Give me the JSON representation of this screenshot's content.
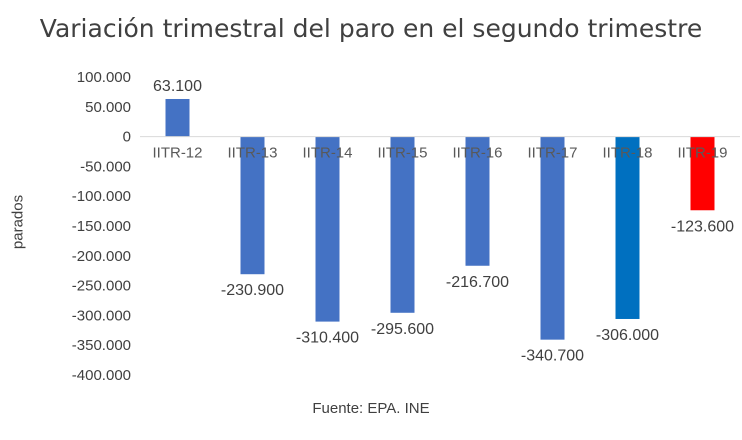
{
  "chart_data": {
    "type": "bar",
    "title": "Variación trimestral del paro en el segundo trimestre",
    "xlabel": "",
    "ylabel": "parados",
    "source": "Fuente: EPA. INE",
    "categories": [
      "IITR-12",
      "IITR-13",
      "IITR-14",
      "IITR-15",
      "IITR-16",
      "IITR-17",
      "IITR-18",
      "IITR-19"
    ],
    "values": [
      63100,
      -230900,
      -310400,
      -295600,
      -216700,
      -340700,
      -306000,
      -123600
    ],
    "data_labels": [
      "63.100",
      "-230.900",
      "-310.400",
      "-295.600",
      "-216.700",
      "-340.700",
      "-306.000",
      "-123.600"
    ],
    "bar_colors": [
      "#4472C4",
      "#4472C4",
      "#4472C4",
      "#4472C4",
      "#4472C4",
      "#4472C4",
      "#0070C0",
      "#FF0000"
    ],
    "ylim": [
      -400000,
      100000
    ],
    "yticks": [
      100000,
      50000,
      0,
      -50000,
      -100000,
      -150000,
      -200000,
      -250000,
      -300000,
      -350000,
      -400000
    ],
    "ytick_labels": [
      "100.000",
      "50.000",
      "0",
      "-50.000",
      "-100.000",
      "-150.000",
      "-200.000",
      "-250.000",
      "-300.000",
      "-350.000",
      "-400.000"
    ],
    "grid": false,
    "legend": "none"
  }
}
